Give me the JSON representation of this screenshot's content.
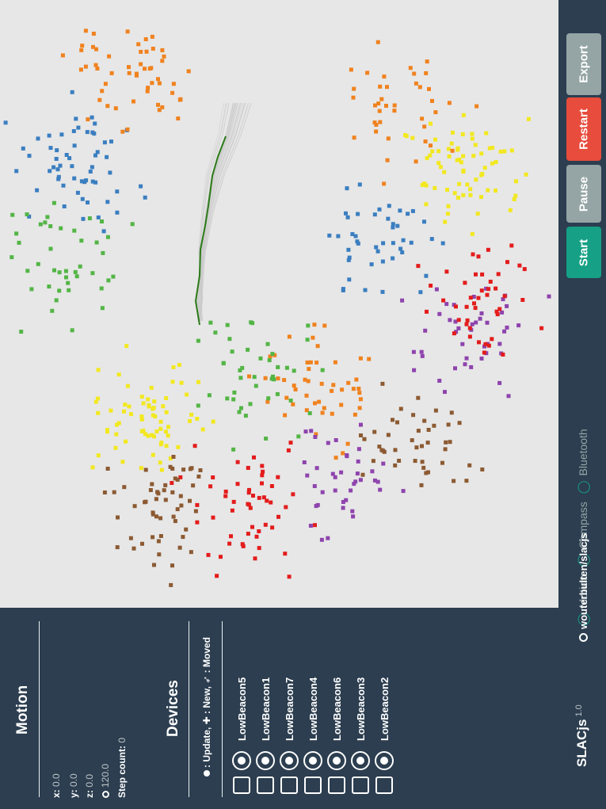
{
  "app": {
    "name": "SLACjs",
    "version": "1.0"
  },
  "colors": {
    "background": "#2c3e50",
    "map": "#e7e7e7",
    "start": "#16a085",
    "pause": "#95a5a6",
    "restart": "#e74c3c",
    "export": "#95a5a6",
    "path": "#2b7a17",
    "beacons": [
      "#3a7ec0",
      "#f0821e",
      "#53b545",
      "#f2e820",
      "#8e44ad",
      "#e31c1c",
      "#8c5a32"
    ]
  },
  "buttons": {
    "start": "Start",
    "pause": "Pause",
    "restart": "Restart",
    "export": "Export"
  },
  "footer": {
    "repo": "wouterbulten/slacjs",
    "repo_icon": "github-icon",
    "sensors": [
      {
        "label": "Motion",
        "icon": "circle-outline-icon"
      },
      {
        "label": "Compass",
        "icon": "circle-outline-icon"
      },
      {
        "label": "Bluetooth",
        "icon": "circle-outline-icon"
      }
    ]
  },
  "motion": {
    "title": "Motion",
    "x_label": "x:",
    "x_value": "0.0",
    "y_label": "y:",
    "y_value": "0.0",
    "z_label": "z:",
    "z_value": "0.0",
    "heading_icon": "compass-icon",
    "heading_value": "120.0",
    "step_label": "Step count:",
    "step_value": "0"
  },
  "devices": {
    "title": "Devices",
    "legend": ": Update, ✚ : New, ➶ : Moved",
    "items": [
      {
        "name": "LowBeacon5"
      },
      {
        "name": "LowBeacon1"
      },
      {
        "name": "LowBeacon7"
      },
      {
        "name": "LowBeacon4"
      },
      {
        "name": "LowBeacon6"
      },
      {
        "name": "LowBeacon3"
      },
      {
        "name": "LowBeacon2"
      }
    ]
  }
}
